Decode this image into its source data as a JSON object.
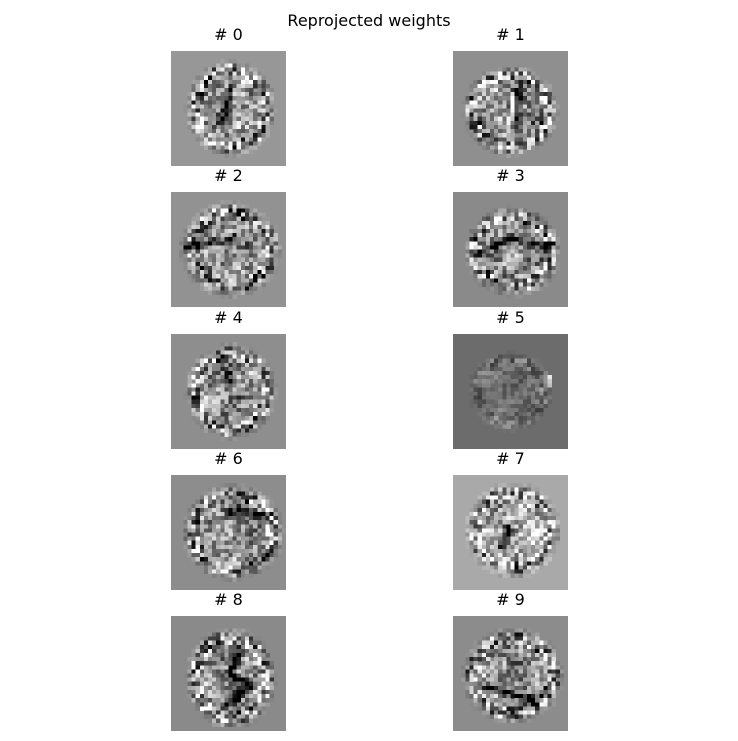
{
  "chart_data": {
    "type": "heatmap",
    "title": "Reprojected weights",
    "layout": {
      "rows": 5,
      "cols": 2
    },
    "panels": [
      {
        "title": "# 0",
        "background": "#979797",
        "seed": 11,
        "ring": [
          0.52,
          0.5,
          0.34,
          0.36
        ],
        "stroke": [
          [
            0.52,
            0.32
          ],
          [
            0.48,
            0.48
          ],
          [
            0.45,
            0.64
          ]
        ]
      },
      {
        "title": "# 1",
        "background": "#8f8f8f",
        "seed": 23,
        "ring": [
          0.5,
          0.52,
          0.36,
          0.34
        ],
        "stroke": [
          [
            0.58,
            0.34
          ],
          [
            0.56,
            0.5
          ],
          [
            0.55,
            0.62
          ]
        ],
        "bright": [
          [
            0.52,
            0.4
          ],
          [
            0.54,
            0.56
          ]
        ]
      },
      {
        "title": "# 2",
        "background": "#929292",
        "seed": 37,
        "ring": [
          0.52,
          0.5,
          0.38,
          0.36
        ],
        "stroke": [
          [
            0.16,
            0.48
          ],
          [
            0.36,
            0.44
          ],
          [
            0.56,
            0.4
          ]
        ]
      },
      {
        "title": "# 3",
        "background": "#8a8a8a",
        "seed": 41,
        "ring": [
          0.52,
          0.52,
          0.36,
          0.34
        ],
        "stroke": [
          [
            0.36,
            0.46
          ],
          [
            0.5,
            0.4
          ],
          [
            0.66,
            0.44
          ],
          [
            0.82,
            0.46
          ]
        ]
      },
      {
        "title": "# 4",
        "background": "#8e8e8e",
        "seed": 53,
        "ring": [
          0.52,
          0.5,
          0.34,
          0.36
        ],
        "stroke": [
          [
            0.5,
            0.34
          ],
          [
            0.5,
            0.44
          ]
        ]
      },
      {
        "title": "# 5",
        "background": "#6c6c6c",
        "seed": 67,
        "ring": [
          0.5,
          0.5,
          0.32,
          0.3
        ],
        "stroke": [],
        "bright": [
          [
            0.84,
            0.34
          ],
          [
            0.86,
            0.44
          ]
        ],
        "contrast": 0.35
      },
      {
        "title": "# 6",
        "background": "#8d8d8d",
        "seed": 71,
        "ring": [
          0.54,
          0.5,
          0.38,
          0.36
        ],
        "stroke": [
          [
            0.5,
            0.34
          ],
          [
            0.64,
            0.3
          ],
          [
            0.8,
            0.36
          ]
        ]
      },
      {
        "title": "# 7",
        "background": "#a9a9a9",
        "seed": 83,
        "ring": [
          0.52,
          0.48,
          0.36,
          0.36
        ],
        "stroke": [
          [
            0.48,
            0.46
          ],
          [
            0.44,
            0.62
          ]
        ]
      },
      {
        "title": "# 8",
        "background": "#8a8a8a",
        "seed": 97,
        "ring": [
          0.52,
          0.54,
          0.34,
          0.38
        ],
        "stroke": [
          [
            0.6,
            0.3
          ],
          [
            0.52,
            0.5
          ],
          [
            0.7,
            0.62
          ],
          [
            0.46,
            0.8
          ]
        ]
      },
      {
        "title": "# 9",
        "background": "#8c8c8c",
        "seed": 101,
        "ring": [
          0.52,
          0.52,
          0.38,
          0.36
        ],
        "stroke": [
          [
            0.3,
            0.62
          ],
          [
            0.5,
            0.68
          ],
          [
            0.7,
            0.72
          ]
        ]
      }
    ]
  }
}
